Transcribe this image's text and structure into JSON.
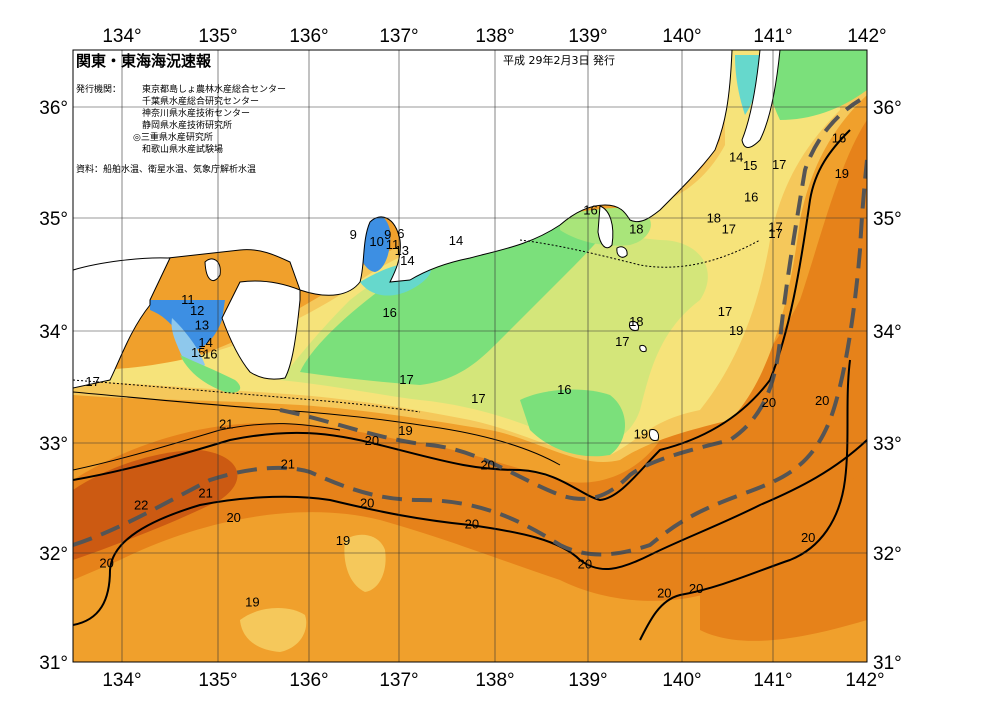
{
  "header": {
    "title": "関東・東海海況速報",
    "date": "平成 29年2月3日 発行"
  },
  "issuers": {
    "label": "発行機関：",
    "items": [
      "東京都島しょ農林水産総合センター",
      "千葉県水産総合研究センター",
      "神奈川県水産技術センター",
      "静岡県水産技術研究所",
      "◎三重県水産研究所",
      "和歌山県水産試験場"
    ]
  },
  "sources": "資料：船舶水温、衛星水温、気象庁解析水温",
  "axes": {
    "lon_ticks": [
      "134°",
      "135°",
      "136°",
      "137°",
      "138°",
      "139°",
      "140°",
      "141°",
      "142°"
    ],
    "lat_ticks": [
      "36°",
      "35°",
      "34°",
      "33°",
      "32°",
      "31°"
    ]
  },
  "isotherm_labels": [
    {
      "text": "16",
      "lon": 141.7,
      "lat": 35.7
    },
    {
      "text": "14",
      "lon": 140.6,
      "lat": 35.53
    },
    {
      "text": "15",
      "lon": 140.75,
      "lat": 35.45
    },
    {
      "text": "17",
      "lon": 141.06,
      "lat": 35.46
    },
    {
      "text": "19",
      "lon": 141.73,
      "lat": 35.38
    },
    {
      "text": "16",
      "lon": 140.76,
      "lat": 35.17
    },
    {
      "text": "16",
      "lon": 139.04,
      "lat": 35.05
    },
    {
      "text": "18",
      "lon": 139.53,
      "lat": 34.88
    },
    {
      "text": "18",
      "lon": 140.36,
      "lat": 34.98
    },
    {
      "text": "17",
      "lon": 140.52,
      "lat": 34.88
    },
    {
      "text": "17",
      "lon": 141.02,
      "lat": 34.9
    },
    {
      "text": "17",
      "lon": 141.02,
      "lat": 34.84
    },
    {
      "text": "9",
      "lon": 136.5,
      "lat": 34.83
    },
    {
      "text": "10",
      "lon": 136.75,
      "lat": 34.77
    },
    {
      "text": "9",
      "lon": 136.87,
      "lat": 34.83
    },
    {
      "text": "11",
      "lon": 136.92,
      "lat": 34.74
    },
    {
      "text": "6",
      "lon": 137.01,
      "lat": 34.84
    },
    {
      "text": "13",
      "lon": 137.02,
      "lat": 34.69
    },
    {
      "text": "14",
      "lon": 137.08,
      "lat": 34.6
    },
    {
      "text": "14",
      "lon": 137.6,
      "lat": 34.78
    },
    {
      "text": "11",
      "lon": 134.73,
      "lat": 34.25
    },
    {
      "text": "12",
      "lon": 134.83,
      "lat": 34.15
    },
    {
      "text": "13",
      "lon": 134.88,
      "lat": 34.02
    },
    {
      "text": "14",
      "lon": 134.92,
      "lat": 33.86
    },
    {
      "text": "15",
      "lon": 134.84,
      "lat": 33.77
    },
    {
      "text": "16",
      "lon": 134.97,
      "lat": 33.76
    },
    {
      "text": "17",
      "lon": 133.71,
      "lat": 33.51
    },
    {
      "text": "16",
      "lon": 136.89,
      "lat": 34.13
    },
    {
      "text": "18",
      "lon": 139.53,
      "lat": 34.05
    },
    {
      "text": "17",
      "lon": 140.48,
      "lat": 34.14
    },
    {
      "text": "17",
      "lon": 139.38,
      "lat": 33.87
    },
    {
      "text": "19",
      "lon": 140.6,
      "lat": 33.97
    },
    {
      "text": "17",
      "lon": 137.07,
      "lat": 33.53
    },
    {
      "text": "16",
      "lon": 138.76,
      "lat": 33.44
    },
    {
      "text": "17",
      "lon": 137.84,
      "lat": 33.36
    },
    {
      "text": "19",
      "lon": 139.58,
      "lat": 33.04
    },
    {
      "text": "20",
      "lon": 140.95,
      "lat": 33.32
    },
    {
      "text": "20",
      "lon": 141.52,
      "lat": 33.34
    },
    {
      "text": "21",
      "lon": 135.14,
      "lat": 33.13
    },
    {
      "text": "20",
      "lon": 136.7,
      "lat": 32.98
    },
    {
      "text": "19",
      "lon": 137.06,
      "lat": 33.07
    },
    {
      "text": "21",
      "lon": 135.8,
      "lat": 32.77
    },
    {
      "text": "20",
      "lon": 137.94,
      "lat": 32.76
    },
    {
      "text": "21",
      "lon": 134.92,
      "lat": 32.51
    },
    {
      "text": "22",
      "lon": 134.23,
      "lat": 32.4
    },
    {
      "text": "20",
      "lon": 136.65,
      "lat": 32.42
    },
    {
      "text": "20",
      "lon": 135.22,
      "lat": 32.29
    },
    {
      "text": "20",
      "lon": 137.77,
      "lat": 32.23
    },
    {
      "text": "19",
      "lon": 136.39,
      "lat": 32.08
    },
    {
      "text": "20",
      "lon": 141.37,
      "lat": 32.11
    },
    {
      "text": "20",
      "lon": 133.86,
      "lat": 31.88
    },
    {
      "text": "20",
      "lon": 138.98,
      "lat": 31.87
    },
    {
      "text": "20",
      "lon": 139.83,
      "lat": 31.61
    },
    {
      "text": "20",
      "lon": 140.17,
      "lat": 31.65
    },
    {
      "text": "19",
      "lon": 135.42,
      "lat": 31.53
    }
  ],
  "colors": {
    "blue": "#3d8fe3",
    "lightblue": "#8ec8ec",
    "cyan": "#66d8cc",
    "green": "#7be07b",
    "lightgreen": "#a9e57a",
    "yellowgreen": "#d4e67a",
    "yellow": "#f6e37a",
    "lightorange": "#f5c85b",
    "orange": "#f0a02c",
    "deeporange": "#e6821a",
    "darkorange": "#cc5a12",
    "land": "#ffffff"
  }
}
